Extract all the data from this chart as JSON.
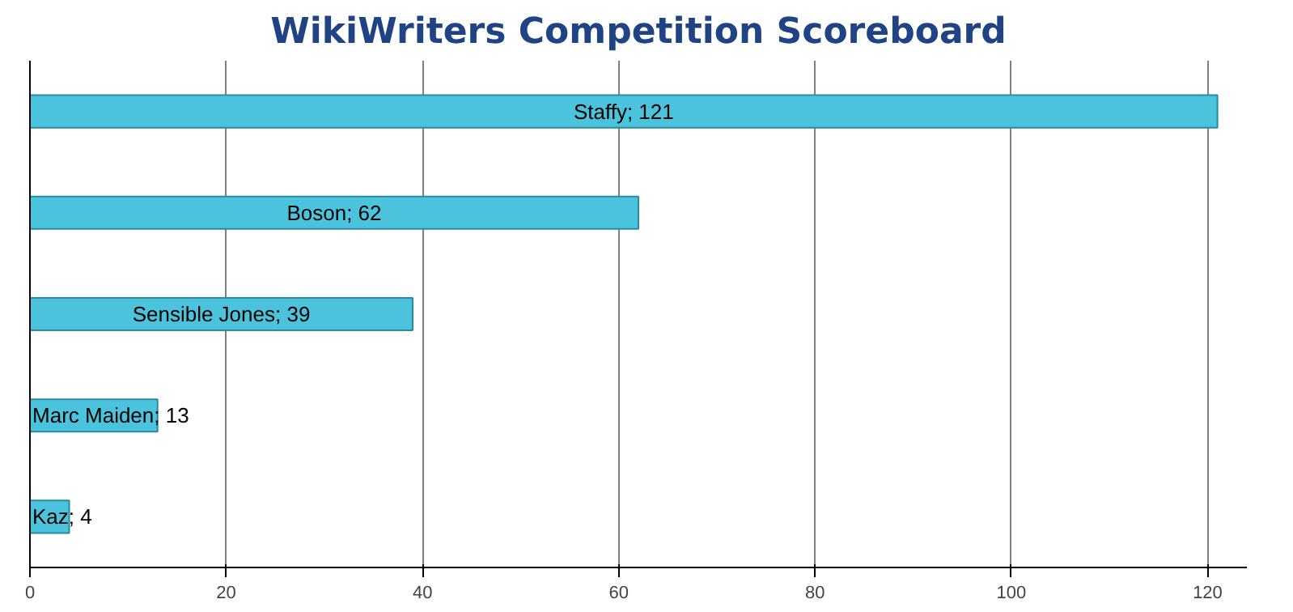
{
  "chart_data": {
    "type": "bar",
    "orientation": "horizontal",
    "title": "WikiWriters Competition Scoreboard",
    "categories": [
      null,
      null,
      null,
      null,
      null
    ],
    "value_labels": [
      "Staffy; 121",
      "Boson; 62",
      "Sensible Jones; 39",
      "Marc Maiden; 13",
      "Kaz; 4"
    ],
    "values": [
      121,
      62,
      39,
      13,
      4
    ],
    "color": "#4cc3dc",
    "xlim": [
      0,
      124
    ],
    "xticks": [
      0,
      20,
      40,
      60,
      80,
      100,
      120
    ],
    "grid": "x",
    "tick_labels": "x"
  }
}
